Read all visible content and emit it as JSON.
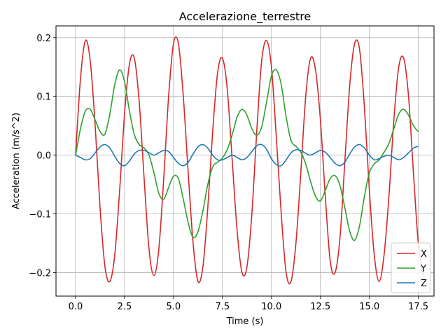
{
  "chart_data": {
    "type": "line",
    "title": "Accelerazione_terrestre",
    "xlabel": "Time (s)",
    "ylabel": "Acceleration (m/s^2)",
    "xlim": [
      -1.0,
      18.3
    ],
    "ylim": [
      -0.24,
      0.22
    ],
    "xticks": [
      0.0,
      2.5,
      5.0,
      7.5,
      10.0,
      12.5,
      15.0,
      17.5
    ],
    "xtick_labels": [
      "0.0",
      "2.5",
      "5.0",
      "7.5",
      "10.0",
      "12.5",
      "15.0",
      "17.5"
    ],
    "yticks": [
      -0.2,
      -0.1,
      0.0,
      0.1,
      0.2
    ],
    "ytick_labels": [
      "−0.2",
      "−0.1",
      "0.0",
      "0.1",
      "0.2"
    ],
    "grid": true,
    "legend_position": "lower-right",
    "x_step": 0.25,
    "series": [
      {
        "name": "X",
        "color": "#d62728",
        "values": [
          0.0,
          0.13,
          0.195,
          0.16,
          0.05,
          -0.09,
          -0.19,
          -0.215,
          -0.17,
          -0.06,
          0.07,
          0.155,
          0.165,
          0.09,
          -0.04,
          -0.16,
          -0.205,
          -0.16,
          -0.04,
          0.1,
          0.19,
          0.19,
          0.1,
          -0.03,
          -0.15,
          -0.215,
          -0.19,
          -0.09,
          0.04,
          0.14,
          0.165,
          0.11,
          -0.01,
          -0.13,
          -0.2,
          -0.19,
          -0.1,
          0.04,
          0.16,
          0.195,
          0.15,
          0.03,
          -0.1,
          -0.2,
          -0.215,
          -0.15,
          -0.03,
          0.1,
          0.165,
          0.145,
          0.06,
          -0.07,
          -0.18,
          -0.2,
          -0.14,
          -0.01,
          0.12,
          0.19,
          0.18,
          0.08,
          -0.06,
          -0.17,
          -0.215,
          -0.17,
          -0.07,
          0.06,
          0.15,
          0.165,
          0.1,
          -0.03,
          -0.15,
          -0.205
        ]
      },
      {
        "name": "Y",
        "color": "#2ca02c",
        "values": [
          0.0,
          0.045,
          0.075,
          0.078,
          0.06,
          0.04,
          0.036,
          0.07,
          0.12,
          0.145,
          0.125,
          0.075,
          0.035,
          0.018,
          0.012,
          0.0,
          -0.03,
          -0.065,
          -0.075,
          -0.055,
          -0.036,
          -0.04,
          -0.075,
          -0.115,
          -0.14,
          -0.13,
          -0.095,
          -0.05,
          -0.02,
          -0.012,
          -0.005,
          0.01,
          0.035,
          0.065,
          0.078,
          0.068,
          0.045,
          0.034,
          0.048,
          0.09,
          0.135,
          0.145,
          0.12,
          0.065,
          0.025,
          0.015,
          0.005,
          -0.015,
          -0.045,
          -0.07,
          -0.078,
          -0.06,
          -0.04,
          -0.035,
          -0.052,
          -0.09,
          -0.13,
          -0.145,
          -0.12,
          -0.07,
          -0.03,
          -0.015,
          -0.008,
          0.005,
          0.02,
          0.045,
          0.07,
          0.078,
          0.068,
          0.05,
          0.04
        ]
      },
      {
        "name": "Z",
        "color": "#1f77b4",
        "values": [
          0.0,
          -0.004,
          -0.008,
          -0.006,
          0.004,
          0.014,
          0.018,
          0.012,
          -0.002,
          -0.014,
          -0.018,
          -0.01,
          0.002,
          0.008,
          0.008,
          0.004,
          0.0,
          0.004,
          0.008,
          0.006,
          -0.004,
          -0.014,
          -0.018,
          -0.012,
          0.002,
          0.014,
          0.018,
          0.012,
          0.0,
          -0.008,
          -0.008,
          -0.004,
          0.0,
          -0.004,
          -0.008,
          -0.004,
          0.006,
          0.016,
          0.018,
          0.01,
          -0.006,
          -0.016,
          -0.018,
          -0.008,
          0.004,
          0.009,
          0.008,
          0.003,
          0.0,
          0.004,
          0.008,
          0.005,
          -0.004,
          -0.014,
          -0.018,
          -0.012,
          0.002,
          0.014,
          0.018,
          0.012,
          0.0,
          -0.008,
          -0.006,
          -0.002,
          0.0,
          -0.004,
          -0.008,
          -0.004,
          0.004,
          0.012,
          0.015
        ]
      }
    ]
  }
}
